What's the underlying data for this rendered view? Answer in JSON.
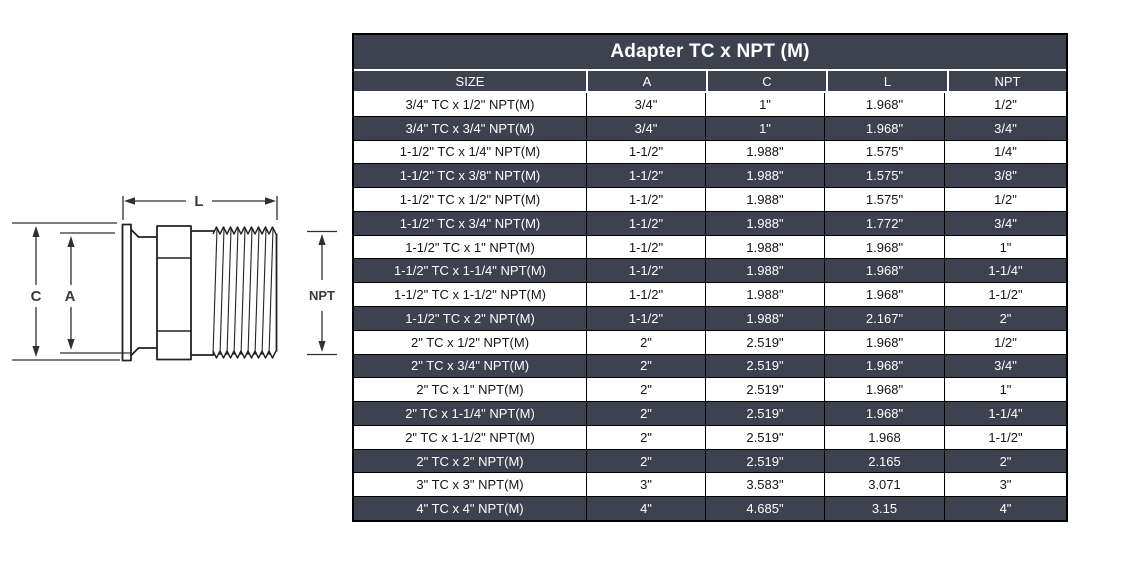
{
  "colors": {
    "dark_bg": "#3E424F",
    "light_bg": "#ffffff",
    "line_black": "#000000",
    "line_white": "#ffffff",
    "text_light": "#ffffff",
    "text_dark": "#141414",
    "draw_stroke": "#222222",
    "label_color": "#3a3a3a"
  },
  "diagram": {
    "labels": {
      "length": "L",
      "clamp_od": "C",
      "tube_od": "A",
      "thread": "NPT"
    }
  },
  "table": {
    "title": "Adapter TC x NPT (M)",
    "columns": [
      "SIZE",
      "A",
      "C",
      "L",
      "NPT"
    ],
    "rows": [
      [
        "3/4\" TC x 1/2\" NPT(M)",
        "3/4\"",
        "1\"",
        "1.968\"",
        "1/2\""
      ],
      [
        "3/4\" TC x 3/4\" NPT(M)",
        "3/4\"",
        "1\"",
        "1.968\"",
        "3/4\""
      ],
      [
        "1-1/2\" TC x 1/4\" NPT(M)",
        "1-1/2\"",
        "1.988\"",
        "1.575\"",
        "1/4\""
      ],
      [
        "1-1/2\" TC x 3/8\" NPT(M)",
        "1-1/2\"",
        "1.988\"",
        "1.575\"",
        "3/8\""
      ],
      [
        "1-1/2\" TC x 1/2\" NPT(M)",
        "1-1/2\"",
        "1.988\"",
        "1.575\"",
        "1/2\""
      ],
      [
        "1-1/2\" TC x 3/4\" NPT(M)",
        "1-1/2\"",
        "1.988\"",
        "1.772\"",
        "3/4\""
      ],
      [
        "1-1/2\" TC x 1\" NPT(M)",
        "1-1/2\"",
        "1.988\"",
        "1.968\"",
        "1\""
      ],
      [
        "1-1/2\" TC x 1-1/4\" NPT(M)",
        "1-1/2\"",
        "1.988\"",
        "1.968\"",
        "1-1/4\""
      ],
      [
        "1-1/2\" TC x 1-1/2\" NPT(M)",
        "1-1/2\"",
        "1.988\"",
        "1.968\"",
        "1-1/2\""
      ],
      [
        "1-1/2\" TC x 2\" NPT(M)",
        "1-1/2\"",
        "1.988\"",
        "2.167\"",
        "2\""
      ],
      [
        "2\" TC x 1/2\" NPT(M)",
        "2\"",
        "2.519\"",
        "1.968\"",
        "1/2\""
      ],
      [
        "2\" TC x 3/4\" NPT(M)",
        "2\"",
        "2.519\"",
        "1.968\"",
        "3/4\""
      ],
      [
        "2\" TC x 1\" NPT(M)",
        "2\"",
        "2.519\"",
        "1.968\"",
        "1\""
      ],
      [
        "2\" TC x 1-1/4\" NPT(M)",
        "2\"",
        "2.519\"",
        "1.968\"",
        "1-1/4\""
      ],
      [
        "2\" TC x 1-1/2\" NPT(M)",
        "2\"",
        "2.519\"",
        "1.968",
        "1-1/2\""
      ],
      [
        "2\" TC x 2\" NPT(M)",
        "2\"",
        "2.519\"",
        "2.165",
        "2\""
      ],
      [
        "3\" TC x 3\" NPT(M)",
        "3\"",
        "3.583\"",
        "3.071",
        "3\""
      ],
      [
        "4\" TC x 4\" NPT(M)",
        "4\"",
        "4.685\"",
        "3.15",
        "4\""
      ]
    ]
  }
}
